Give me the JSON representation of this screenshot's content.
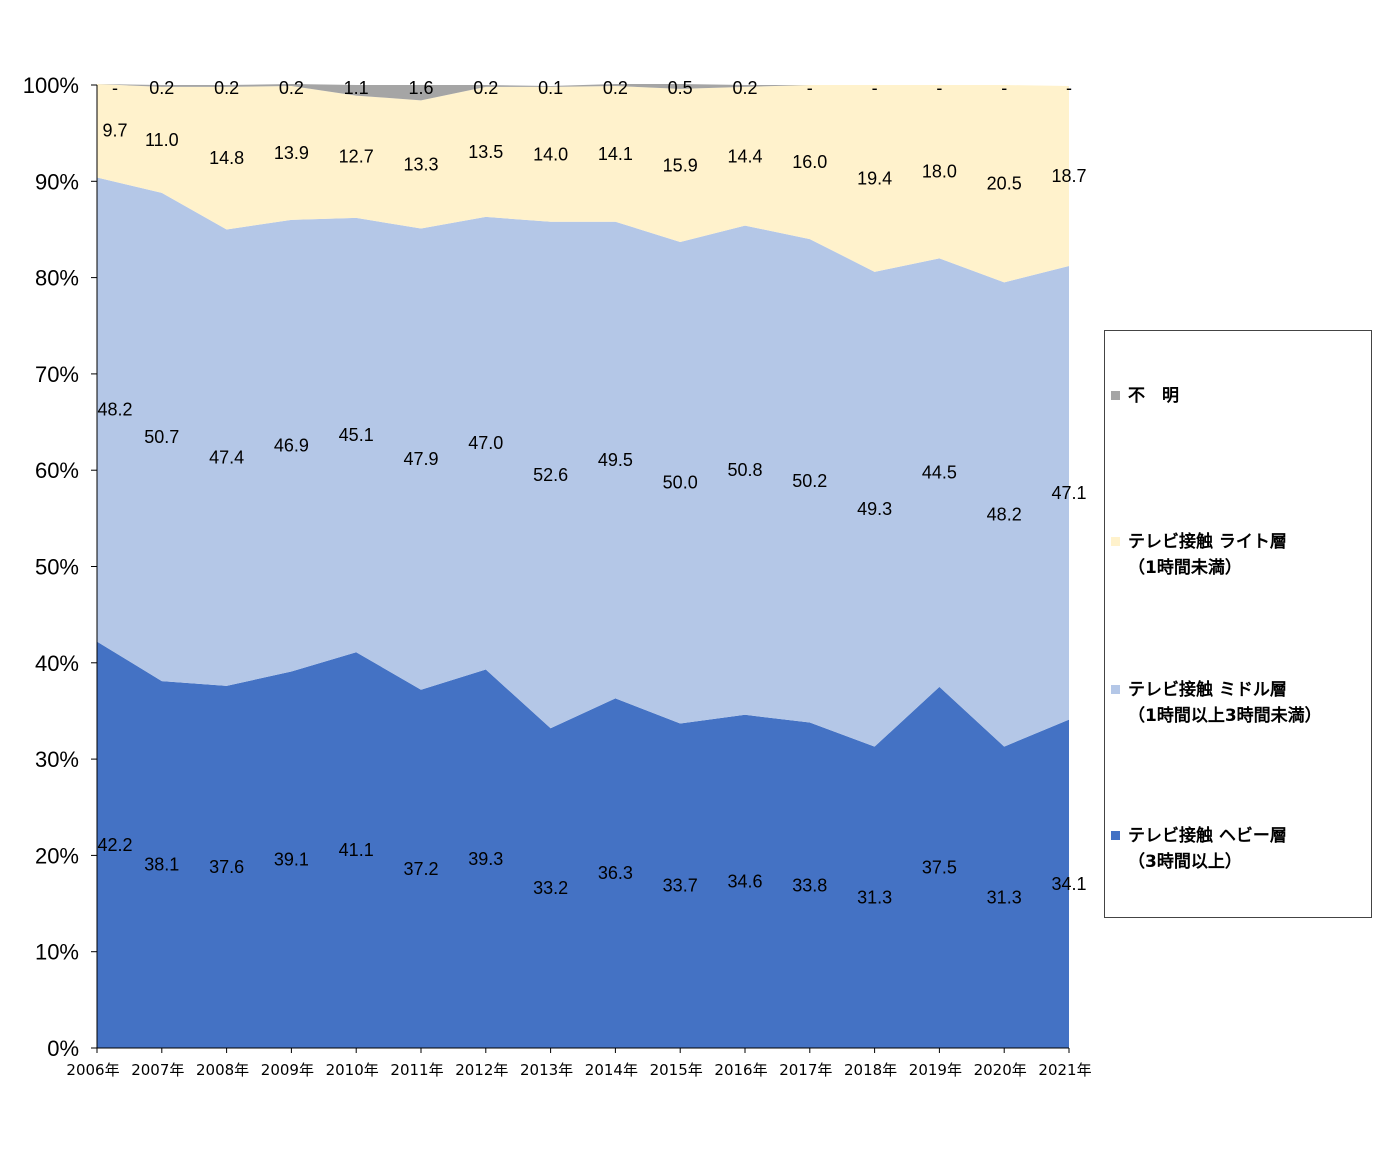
{
  "chart_data": {
    "type": "area",
    "stacked": true,
    "categories": [
      "2006年",
      "2007年",
      "2008年",
      "2009年",
      "2010年",
      "2011年",
      "2012年",
      "2013年",
      "2014年",
      "2015年",
      "2016年",
      "2017年",
      "2018年",
      "2019年",
      "2020年",
      "2021年"
    ],
    "series": [
      {
        "name": "テレビ接触 ヘビー層\n（3時間以上）",
        "color": "#4472C4",
        "values": [
          42.2,
          38.1,
          37.6,
          39.1,
          41.1,
          37.2,
          39.3,
          33.2,
          36.3,
          33.7,
          34.6,
          33.8,
          31.3,
          37.5,
          31.3,
          34.1
        ],
        "labels": [
          "42.2",
          "38.1",
          "37.6",
          "39.1",
          "41.1",
          "37.2",
          "39.3",
          "33.2",
          "36.3",
          "33.7",
          "34.6",
          "33.8",
          "31.3",
          "37.5",
          "31.3",
          "34.1"
        ]
      },
      {
        "name": "テレビ接触 ミドル層\n（1時間以上3時間未満）",
        "color": "#B4C7E7",
        "values": [
          48.2,
          50.7,
          47.4,
          46.9,
          45.1,
          47.9,
          47.0,
          52.6,
          49.5,
          50.0,
          50.8,
          50.2,
          49.3,
          44.5,
          48.2,
          47.1
        ],
        "labels": [
          "48.2",
          "50.7",
          "47.4",
          "46.9",
          "45.1",
          "47.9",
          "47.0",
          "52.6",
          "49.5",
          "50.0",
          "50.8",
          "50.2",
          "49.3",
          "44.5",
          "48.2",
          "47.1"
        ]
      },
      {
        "name": "テレビ接触 ライト層\n（1時間未満）",
        "color": "#FFF2CC",
        "values": [
          9.7,
          11.0,
          14.8,
          13.9,
          12.7,
          13.3,
          13.5,
          14.0,
          14.1,
          15.9,
          14.4,
          16.0,
          19.4,
          18.0,
          20.5,
          18.7
        ],
        "labels": [
          "9.7",
          "11.0",
          "14.8",
          "13.9",
          "12.7",
          "13.3",
          "13.5",
          "14.0",
          "14.1",
          "15.9",
          "14.4",
          "16.0",
          "19.4",
          "18.0",
          "20.5",
          "18.7"
        ]
      },
      {
        "name": "不　明",
        "color": "#A5A5A5",
        "values": [
          0,
          0.2,
          0.2,
          0.2,
          1.1,
          1.6,
          0.2,
          0.1,
          0.2,
          0.5,
          0.2,
          0,
          0,
          0,
          0,
          0
        ],
        "labels": [
          "-",
          "0.2",
          "0.2",
          "0.2",
          "1.1",
          "1.6",
          "0.2",
          "0.1",
          "0.2",
          "0.5",
          "0.2",
          "-",
          "-",
          "-",
          "-",
          "-"
        ]
      }
    ],
    "yticks": [
      "0%",
      "10%",
      "20%",
      "30%",
      "40%",
      "50%",
      "60%",
      "70%",
      "80%",
      "90%",
      "100%"
    ],
    "ylim": [
      0,
      100
    ],
    "grid": false,
    "legend_position": "right",
    "legend_order": [
      3,
      2,
      1,
      0
    ]
  }
}
